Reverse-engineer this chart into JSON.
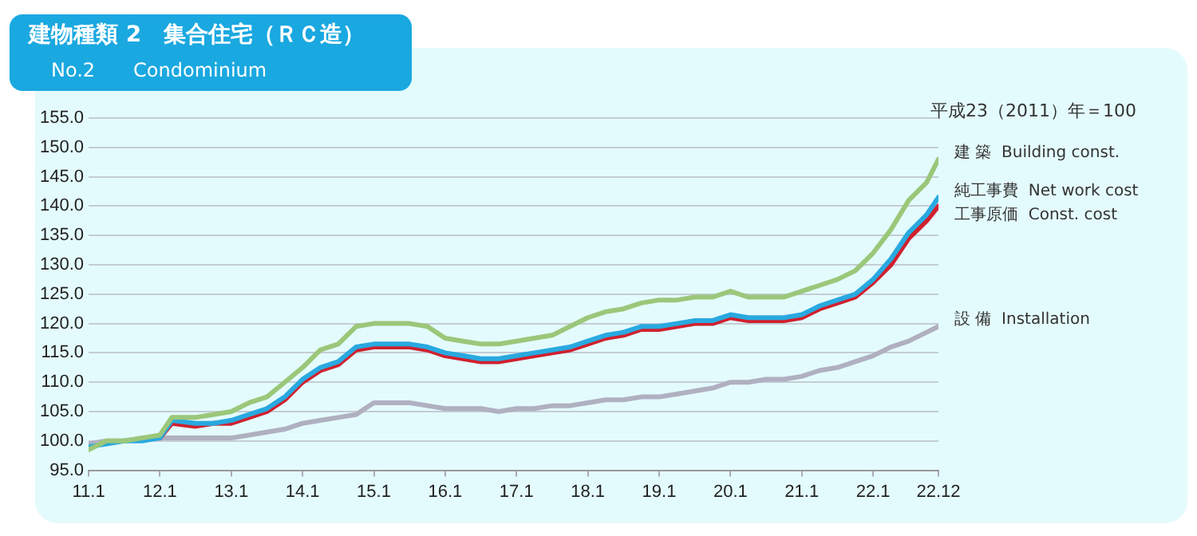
{
  "chart_data": {
    "type": "line",
    "title": "建物種類 2　集合住宅（ＲＣ造）",
    "subtitle": "No.2　　Condominium",
    "annotations": [
      "平成23（2011）年＝100"
    ],
    "x": [
      "2011-01",
      "2011-04",
      "2011-07",
      "2011-10",
      "2012-01",
      "2012-03",
      "2012-07",
      "2012-10",
      "2013-01",
      "2013-04",
      "2013-07",
      "2013-10",
      "2014-01",
      "2014-04",
      "2014-07",
      "2014-10",
      "2015-01",
      "2015-04",
      "2015-07",
      "2015-10",
      "2016-01",
      "2016-04",
      "2016-07",
      "2016-10",
      "2017-01",
      "2017-04",
      "2017-07",
      "2017-10",
      "2018-01",
      "2018-04",
      "2018-07",
      "2018-10",
      "2019-01",
      "2019-04",
      "2019-07",
      "2019-10",
      "2020-01",
      "2020-04",
      "2020-07",
      "2020-10",
      "2021-01",
      "2021-04",
      "2021-07",
      "2021-10",
      "2022-01",
      "2022-04",
      "2022-07",
      "2022-10",
      "2022-12"
    ],
    "series": [
      {
        "name": "建 築  Building const.",
        "color": "#9bc77a",
        "values": [
          98.5,
          100,
          100,
          100.5,
          101,
          104,
          104,
          104.5,
          105,
          106.5,
          107.5,
          110,
          112.5,
          115.5,
          116.5,
          119.5,
          120,
          120,
          120,
          119.5,
          117.5,
          117,
          116.5,
          116.5,
          117,
          117.5,
          118,
          119.5,
          121,
          122,
          122.5,
          123.5,
          124,
          124,
          124.5,
          124.5,
          125.5,
          124.5,
          124.5,
          124.5,
          125.5,
          126.5,
          127.5,
          129,
          132,
          136,
          141,
          144,
          148
        ]
      },
      {
        "name": "純工事費  Net work cost",
        "color": "#29a9e0",
        "values": [
          99,
          99.5,
          100,
          100,
          100.5,
          103.5,
          103,
          103,
          103.5,
          104.5,
          105.5,
          107.5,
          110.5,
          112.5,
          113.5,
          116,
          116.5,
          116.5,
          116.5,
          116,
          115,
          114.5,
          114,
          114,
          114.5,
          115,
          115.5,
          116,
          117,
          118,
          118.5,
          119.5,
          119.5,
          120,
          120.5,
          120.5,
          121.5,
          121,
          121,
          121,
          121.5,
          123,
          124,
          125,
          127.5,
          131,
          135.5,
          138.5,
          141.5
        ]
      },
      {
        "name": "工事原価  Const. cost",
        "color": "#d0202e",
        "values": [
          null,
          null,
          null,
          null,
          100.5,
          103,
          102.5,
          103,
          103,
          104,
          105,
          107,
          110,
          112,
          113,
          115.5,
          116,
          116,
          116,
          115.5,
          114.5,
          114,
          113.5,
          113.5,
          114,
          114.5,
          115,
          115.5,
          116.5,
          117.5,
          118,
          119,
          119,
          119.5,
          120,
          120,
          121,
          120.5,
          120.5,
          120.5,
          121,
          122.5,
          123.5,
          124.5,
          127,
          130,
          134.5,
          137.5,
          140
        ]
      },
      {
        "name": "設 備  Installation",
        "color": "#b0b0c0",
        "values": [
          99.5,
          100,
          100,
          100.5,
          100.5,
          100.5,
          100.5,
          100.5,
          100.5,
          101,
          101.5,
          102,
          103,
          103.5,
          104,
          104.5,
          106.5,
          106.5,
          106.5,
          106,
          105.5,
          105.5,
          105.5,
          105,
          105.5,
          105.5,
          106,
          106,
          106.5,
          107,
          107,
          107.5,
          107.5,
          108,
          108.5,
          109,
          110,
          110,
          110.5,
          110.5,
          111,
          112,
          112.5,
          113.5,
          114.5,
          116,
          117,
          118.5,
          119.5
        ]
      }
    ],
    "xlim": [
      "2011-01",
      "2022-12"
    ],
    "xticks": [
      {
        "value": "2011-01",
        "label": "11.1"
      },
      {
        "value": "2012-01",
        "label": "12.1"
      },
      {
        "value": "2013-01",
        "label": "13.1"
      },
      {
        "value": "2014-01",
        "label": "14.1"
      },
      {
        "value": "2015-01",
        "label": "15.1"
      },
      {
        "value": "2016-01",
        "label": "16.1"
      },
      {
        "value": "2017-01",
        "label": "17.1"
      },
      {
        "value": "2018-01",
        "label": "18.1"
      },
      {
        "value": "2019-01",
        "label": "19.1"
      },
      {
        "value": "2020-01",
        "label": "20.1"
      },
      {
        "value": "2021-01",
        "label": "21.1"
      },
      {
        "value": "2022-01",
        "label": "22.1"
      },
      {
        "value": "2022-12",
        "label": "22.12"
      }
    ],
    "ylim": [
      95,
      155
    ],
    "yticks": [
      {
        "value": 95,
        "label": "95.0"
      },
      {
        "value": 100,
        "label": "100.0"
      },
      {
        "value": 105,
        "label": "105.0"
      },
      {
        "value": 110,
        "label": "110.0"
      },
      {
        "value": 115,
        "label": "115.0"
      },
      {
        "value": 120,
        "label": "120.0"
      },
      {
        "value": 125,
        "label": "125.0"
      },
      {
        "value": 130,
        "label": "130.0"
      },
      {
        "value": 135,
        "label": "135.0"
      },
      {
        "value": 140,
        "label": "140.0"
      },
      {
        "value": 145,
        "label": "145.0"
      },
      {
        "value": 150,
        "label": "150.0"
      },
      {
        "value": 155,
        "label": "155.0"
      }
    ],
    "grid": "y",
    "legend": false,
    "marker": "none",
    "line_style": "solid"
  }
}
